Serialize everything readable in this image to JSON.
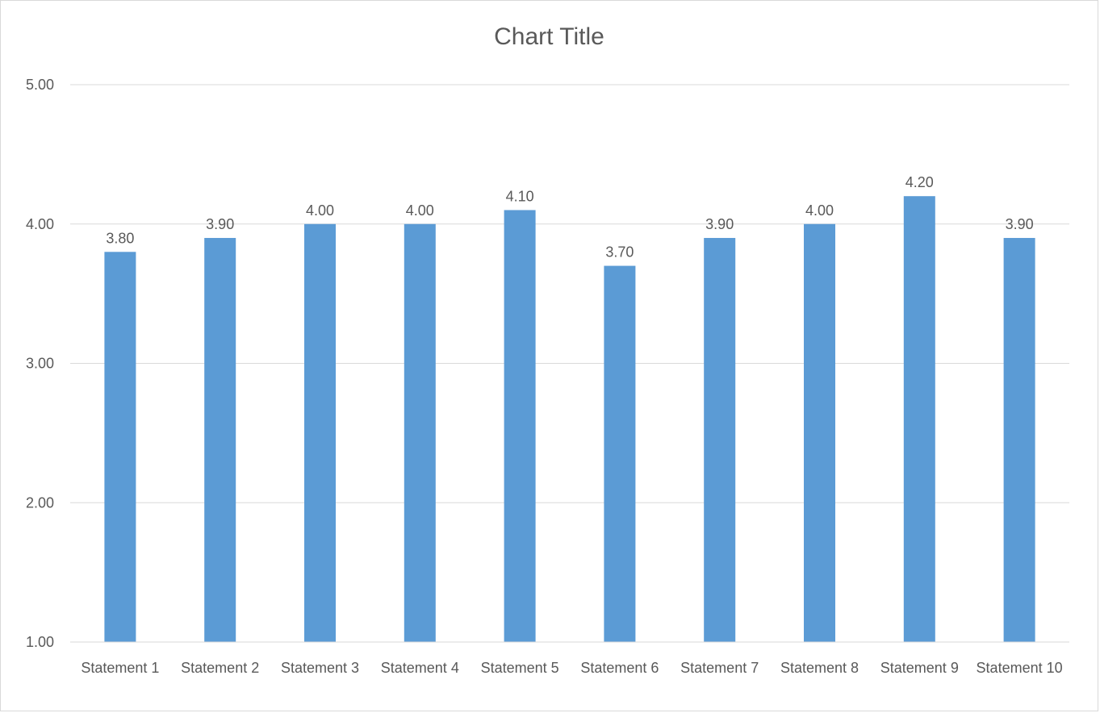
{
  "chart_data": {
    "type": "bar",
    "title": "Chart Title",
    "xlabel": "",
    "ylabel": "",
    "categories": [
      "Statement 1",
      "Statement 2",
      "Statement 3",
      "Statement 4",
      "Statement 5",
      "Statement 6",
      "Statement 7",
      "Statement 8",
      "Statement 9",
      "Statement 10"
    ],
    "values": [
      3.8,
      3.9,
      4.0,
      4.0,
      4.1,
      3.7,
      3.9,
      4.0,
      4.2,
      3.9
    ],
    "data_labels": [
      "3.80",
      "3.90",
      "4.00",
      "4.00",
      "4.10",
      "3.70",
      "3.90",
      "4.00",
      "4.20",
      "3.90"
    ],
    "ylim": [
      1,
      5
    ],
    "yticks": [
      "1.00",
      "2.00",
      "3.00",
      "4.00",
      "5.00"
    ],
    "grid": true,
    "legend": "none",
    "bar_color": "#5B9BD5",
    "gridline_color": "#D9D9D9",
    "text_color": "#595959"
  }
}
